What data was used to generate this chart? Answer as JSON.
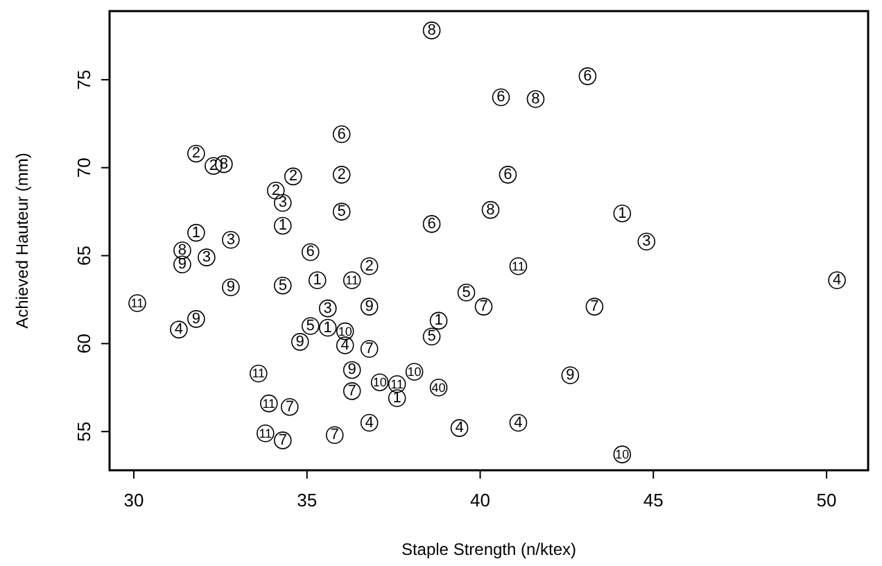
{
  "chart_data": {
    "type": "scatter",
    "xlabel": "Staple Strength (n/ktex)",
    "ylabel": "Achieved Hauteur (mm)",
    "xlim": [
      29.3,
      51.2
    ],
    "ylim": [
      52.8,
      78.9
    ],
    "xticks": [
      30,
      35,
      40,
      45,
      50
    ],
    "yticks": [
      55,
      60,
      65,
      70,
      75
    ],
    "grid": false,
    "legend": false,
    "marker": "circle",
    "series": [
      {
        "name": "1",
        "color": "#000000",
        "x": [
          34.3,
          44.1,
          31.8,
          35.3,
          38.8,
          35.6,
          37.6
        ],
        "values": [
          66.7,
          67.4,
          66.3,
          63.6,
          61.3,
          60.9,
          56.9
        ]
      },
      {
        "name": "2",
        "color": "#000000",
        "x": [
          31.8,
          32.3,
          36.0,
          34.6,
          34.1,
          36.8
        ],
        "values": [
          70.8,
          70.1,
          69.6,
          69.5,
          68.7,
          64.4
        ]
      },
      {
        "name": "3",
        "color": "#000000",
        "x": [
          34.3,
          44.8,
          32.8,
          32.1,
          35.6
        ],
        "values": [
          68.0,
          65.8,
          65.9,
          64.9,
          62.0
        ]
      },
      {
        "name": "4",
        "color": "#000000",
        "x": [
          50.3,
          31.3,
          36.1,
          36.8,
          39.4,
          41.1
        ],
        "values": [
          63.6,
          60.8,
          59.9,
          55.5,
          55.2,
          55.5
        ]
      },
      {
        "name": "5",
        "color": "#000000",
        "x": [
          36.0,
          34.3,
          39.6,
          38.6,
          35.1
        ],
        "values": [
          67.5,
          63.3,
          62.9,
          60.4,
          61.0
        ]
      },
      {
        "name": "6",
        "color": "#000000",
        "x": [
          43.1,
          40.6,
          36.0,
          40.8,
          38.6,
          35.1
        ],
        "values": [
          75.2,
          74.0,
          71.9,
          69.6,
          66.8,
          65.2
        ]
      },
      {
        "name": "7",
        "color": "#000000",
        "x": [
          43.3,
          40.1,
          36.8,
          36.3,
          34.5,
          34.3,
          35.8
        ],
        "values": [
          62.1,
          62.1,
          59.7,
          57.3,
          56.4,
          54.5,
          54.8
        ]
      },
      {
        "name": "8",
        "color": "#000000",
        "x": [
          38.6,
          41.6,
          32.6,
          40.3,
          31.4
        ],
        "values": [
          77.8,
          73.9,
          70.2,
          67.6,
          65.3
        ]
      },
      {
        "name": "9",
        "color": "#000000",
        "x": [
          31.4,
          32.8,
          36.8,
          31.8,
          34.8,
          36.3,
          42.6
        ],
        "values": [
          64.5,
          63.2,
          62.1,
          61.4,
          60.1,
          58.5,
          58.2
        ]
      },
      {
        "name": "10",
        "color": "#000000",
        "x": [
          36.1,
          37.1,
          38.1,
          44.1
        ],
        "values": [
          60.7,
          57.8,
          58.4,
          53.7
        ]
      },
      {
        "name": "11",
        "color": "#000000",
        "x": [
          41.1,
          36.3,
          30.1,
          33.6,
          37.6,
          33.9,
          33.8
        ],
        "values": [
          64.4,
          63.6,
          62.3,
          58.3,
          57.7,
          56.6,
          54.9
        ]
      },
      {
        "name": "40",
        "color": "#000000",
        "x": [
          38.8
        ],
        "values": [
          57.5
        ]
      }
    ]
  }
}
